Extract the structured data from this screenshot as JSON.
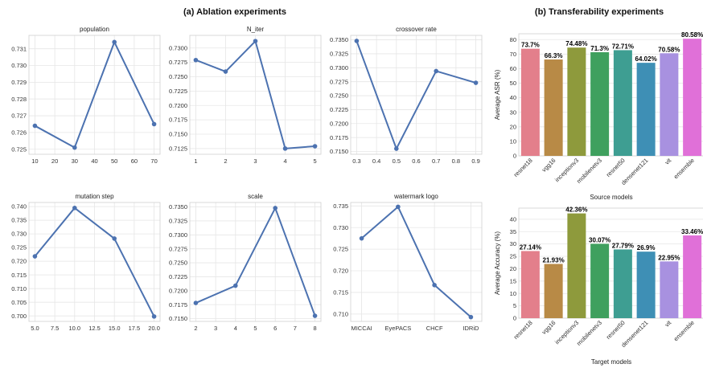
{
  "titles": {
    "ablation": "(a) Ablation experiments",
    "transfer": "(b) Transferability experiments"
  },
  "chart_data": [
    {
      "type": "line",
      "title": "population",
      "x": [
        10,
        30,
        50,
        70
      ],
      "y": [
        0.7264,
        0.7251,
        0.7314,
        0.7265
      ],
      "xlim": [
        7,
        73
      ],
      "ylim": [
        0.7247,
        0.7318
      ],
      "xticks": [
        10,
        20,
        30,
        40,
        50,
        60,
        70
      ],
      "yticks": [
        0.725,
        0.726,
        0.727,
        0.728,
        0.729,
        0.73,
        0.731
      ],
      "yfmt": 3,
      "color": "#4c72b0",
      "grid": true
    },
    {
      "type": "line",
      "title": "N_iter",
      "x": [
        1,
        2,
        3,
        4,
        5
      ],
      "y": [
        0.7279,
        0.7259,
        0.7312,
        0.7125,
        0.7129
      ],
      "xlim": [
        0.8,
        5.2
      ],
      "ylim": [
        0.7115,
        0.7322
      ],
      "xticks": [
        1,
        2,
        3,
        4,
        5
      ],
      "yticks": [
        0.7125,
        0.715,
        0.7175,
        0.72,
        0.7225,
        0.725,
        0.7275,
        0.73
      ],
      "yfmt": 4,
      "color": "#4c72b0",
      "grid": true
    },
    {
      "type": "line",
      "title": "crossover rate",
      "x": [
        0.3,
        0.5,
        0.7,
        0.9
      ],
      "y": [
        0.7348,
        0.7155,
        0.7294,
        0.7273
      ],
      "xlim": [
        0.27,
        0.93
      ],
      "ylim": [
        0.7145,
        0.7358
      ],
      "xticks": [
        0.3,
        0.4,
        0.5,
        0.6,
        0.7,
        0.8,
        0.9
      ],
      "yticks": [
        0.715,
        0.7175,
        0.72,
        0.7225,
        0.725,
        0.7275,
        0.73,
        0.7325,
        0.735
      ],
      "yfmt": 4,
      "color": "#4c72b0",
      "grid": true
    },
    {
      "type": "line",
      "title": "mutation step",
      "x": [
        5,
        10,
        15,
        20
      ],
      "y": [
        0.7218,
        0.7395,
        0.7283,
        0.6998
      ],
      "xlim": [
        4.25,
        20.75
      ],
      "ylim": [
        0.698,
        0.7415
      ],
      "xticks": [
        5.0,
        7.5,
        10.0,
        12.5,
        15.0,
        17.5,
        20.0
      ],
      "yticks": [
        0.7,
        0.705,
        0.71,
        0.715,
        0.72,
        0.725,
        0.73,
        0.735,
        0.74
      ],
      "xfmt": 1,
      "yfmt": 3,
      "color": "#4c72b0",
      "grid": true
    },
    {
      "type": "line",
      "title": "scale",
      "x": [
        2,
        4,
        6,
        8
      ],
      "y": [
        0.7178,
        0.7209,
        0.7348,
        0.7155
      ],
      "xlim": [
        1.7,
        8.3
      ],
      "ylim": [
        0.7145,
        0.7358
      ],
      "xticks": [
        2,
        3,
        4,
        5,
        6,
        7,
        8
      ],
      "yticks": [
        0.715,
        0.7175,
        0.72,
        0.7225,
        0.725,
        0.7275,
        0.73,
        0.7325,
        0.735
      ],
      "yfmt": 4,
      "color": "#4c72b0",
      "grid": true
    },
    {
      "type": "line",
      "title": "watermark logo",
      "categories": [
        "MICCAI",
        "EyePACS",
        "CHCF",
        "IDRiD"
      ],
      "y": [
        0.7275,
        0.7348,
        0.7167,
        0.7093
      ],
      "ylim": [
        0.7083,
        0.7358
      ],
      "yticks": [
        0.71,
        0.715,
        0.72,
        0.725,
        0.73,
        0.735
      ],
      "yfmt": 3,
      "color": "#4c72b0",
      "grid": true
    },
    {
      "type": "bar",
      "title": "",
      "categories": [
        "resnet18",
        "vgg16",
        "inceptionv3",
        "mobilenetv3",
        "resnet50",
        "densenet121",
        "vit",
        "ensemble"
      ],
      "values": [
        73.7,
        66.3,
        74.48,
        71.3,
        72.71,
        64.02,
        70.58,
        80.58
      ],
      "data_labels": [
        "73.7%",
        "66.3%",
        "74.48%",
        "71.3%",
        "72.71%",
        "64.02%",
        "70.58%",
        "80.58%"
      ],
      "colors": [
        "#e37f8b",
        "#b88a46",
        "#8e9a3c",
        "#3fa05e",
        "#3e9e92",
        "#3e8fb5",
        "#a891e0",
        "#e070d8"
      ],
      "ylim": [
        0,
        84
      ],
      "yticks": [
        0,
        10,
        20,
        30,
        40,
        50,
        60,
        70,
        80
      ],
      "xlabel": "Source models",
      "ylabel": "Average ASR (%)",
      "grid": true
    },
    {
      "type": "bar",
      "title": "",
      "categories": [
        "resnet18",
        "vgg16",
        "inceptionv3",
        "mobilenetv3",
        "resnet50",
        "densenet121",
        "vit",
        "ensemble"
      ],
      "values": [
        27.14,
        21.93,
        42.36,
        30.07,
        27.79,
        26.9,
        22.95,
        33.46
      ],
      "data_labels": [
        "27.14%",
        "21.93%",
        "42.36%",
        "30.07%",
        "27.79%",
        "26.9%",
        "22.95%",
        "33.46%"
      ],
      "colors": [
        "#e37f8b",
        "#b88a46",
        "#8e9a3c",
        "#3fa05e",
        "#3e9e92",
        "#3e8fb5",
        "#a891e0",
        "#e070d8"
      ],
      "ylim": [
        0,
        44.5
      ],
      "yticks": [
        0,
        5,
        10,
        15,
        20,
        25,
        30,
        35,
        40
      ],
      "xlabel": "Target models",
      "ylabel": "Average Accuracy (%)",
      "grid": true
    }
  ]
}
